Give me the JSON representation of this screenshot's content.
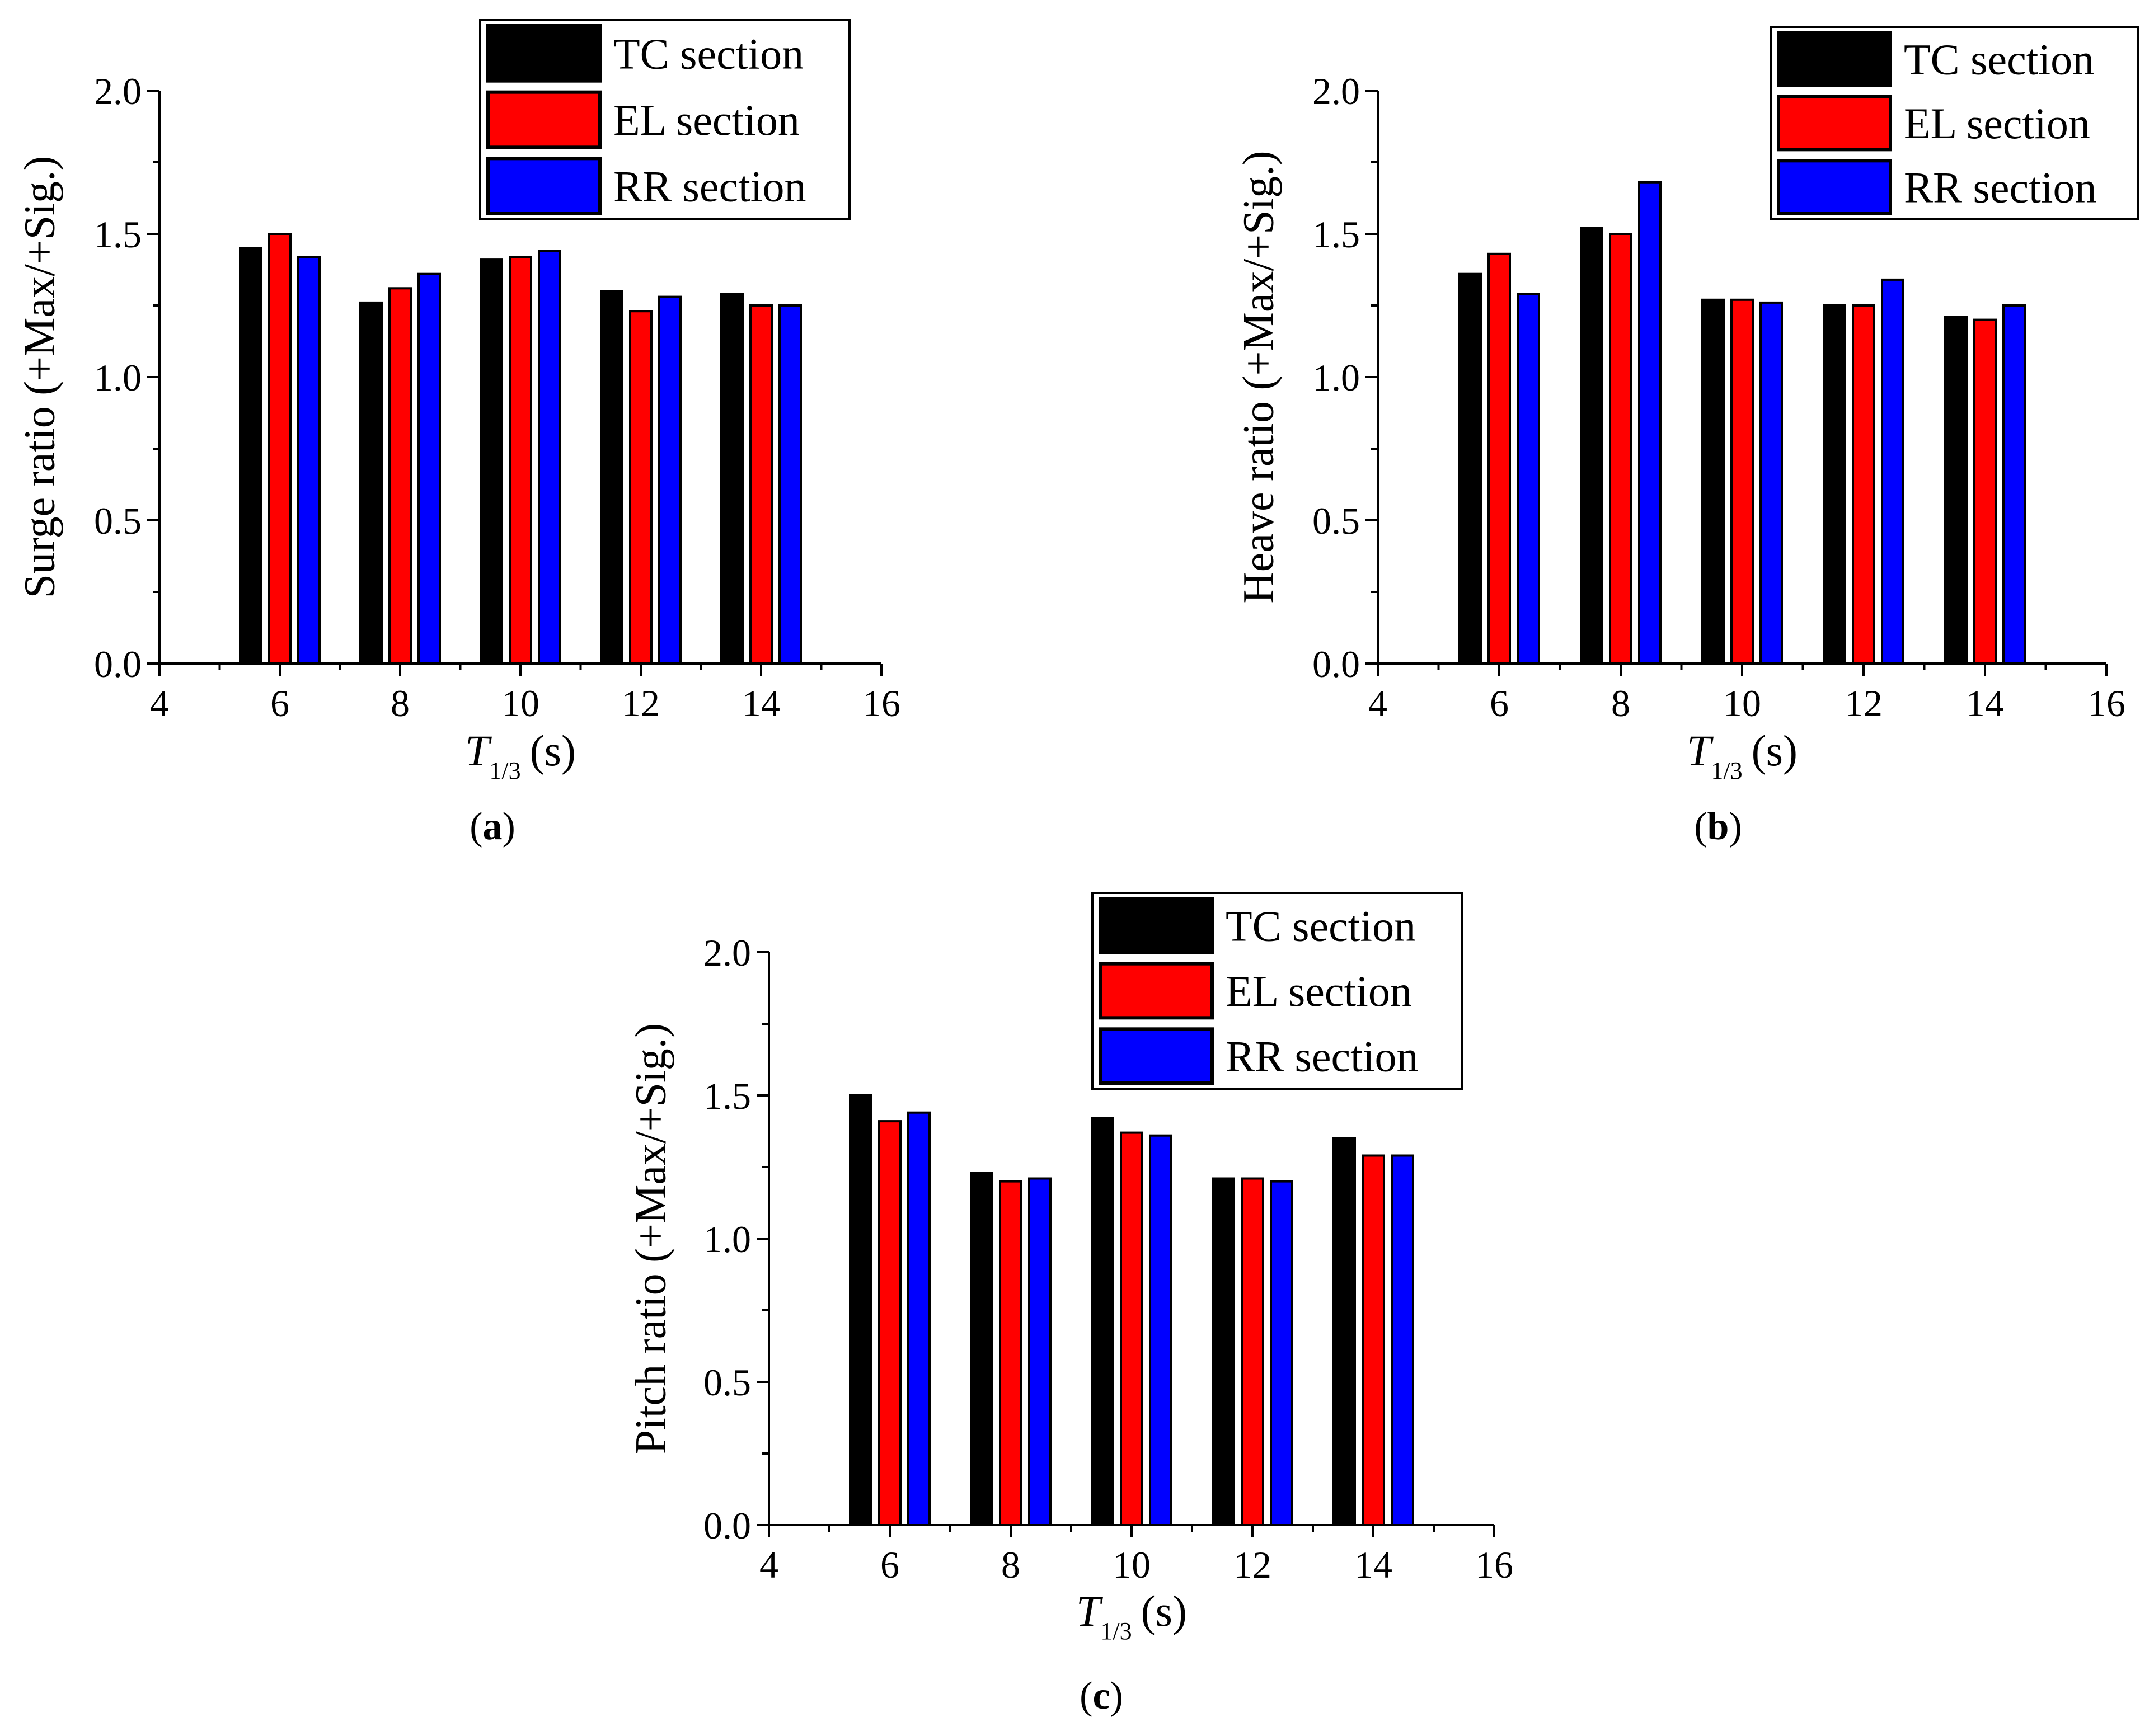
{
  "chart_data": [
    {
      "id": "a",
      "type": "bar",
      "panel_label": "a",
      "ylabel": "Surge ratio (+Max/+Sig.)",
      "xlabel": {
        "symbol": "T",
        "subscript": "1/3",
        "unit": "(s)"
      },
      "xlim": [
        4,
        16
      ],
      "xticks": [
        "4",
        "6",
        "8",
        "10",
        "12",
        "14",
        "16"
      ],
      "ylim": [
        0.0,
        2.0
      ],
      "yticks": [
        "0.0",
        "0.5",
        "1.0",
        "1.5",
        "2.0"
      ],
      "legend_position": "top-right",
      "categories": [
        6,
        8,
        10,
        12,
        14
      ],
      "series": [
        {
          "name": "TC section",
          "color": "#000000",
          "values": [
            1.45,
            1.26,
            1.41,
            1.3,
            1.29
          ]
        },
        {
          "name": "EL section",
          "color": "#ff0000",
          "values": [
            1.5,
            1.31,
            1.42,
            1.23,
            1.25
          ]
        },
        {
          "name": "RR section",
          "color": "#0000ff",
          "values": [
            1.42,
            1.36,
            1.44,
            1.28,
            1.25
          ]
        }
      ]
    },
    {
      "id": "b",
      "type": "bar",
      "panel_label": "b",
      "ylabel": "Heave ratio (+Max/+Sig.)",
      "xlabel": {
        "symbol": "T",
        "subscript": "1/3",
        "unit": "(s)"
      },
      "xlim": [
        4,
        16
      ],
      "xticks": [
        "4",
        "6",
        "8",
        "10",
        "12",
        "14",
        "16"
      ],
      "ylim": [
        0.0,
        2.0
      ],
      "yticks": [
        "0.0",
        "0.5",
        "1.0",
        "1.5",
        "2.0"
      ],
      "legend_position": "top-right",
      "categories": [
        6,
        8,
        10,
        12,
        14
      ],
      "series": [
        {
          "name": "TC section",
          "color": "#000000",
          "values": [
            1.36,
            1.52,
            1.27,
            1.25,
            1.21
          ]
        },
        {
          "name": "EL section",
          "color": "#ff0000",
          "values": [
            1.43,
            1.5,
            1.27,
            1.25,
            1.2
          ]
        },
        {
          "name": "RR section",
          "color": "#0000ff",
          "values": [
            1.29,
            1.68,
            1.26,
            1.34,
            1.25
          ]
        }
      ]
    },
    {
      "id": "c",
      "type": "bar",
      "panel_label": "c",
      "ylabel": "Pitch ratio (+Max/+Sig.)",
      "xlabel": {
        "symbol": "T",
        "subscript": "1/3",
        "unit": "(s)"
      },
      "xlim": [
        4,
        16
      ],
      "xticks": [
        "4",
        "6",
        "8",
        "10",
        "12",
        "14",
        "16"
      ],
      "ylim": [
        0.0,
        2.0
      ],
      "yticks": [
        "0.0",
        "0.5",
        "1.0",
        "1.5",
        "2.0"
      ],
      "legend_position": "top-right",
      "categories": [
        6,
        8,
        10,
        12,
        14
      ],
      "series": [
        {
          "name": "TC section",
          "color": "#000000",
          "values": [
            1.5,
            1.23,
            1.42,
            1.21,
            1.35
          ]
        },
        {
          "name": "EL section",
          "color": "#ff0000",
          "values": [
            1.41,
            1.2,
            1.37,
            1.21,
            1.29
          ]
        },
        {
          "name": "RR section",
          "color": "#0000ff",
          "values": [
            1.44,
            1.21,
            1.36,
            1.2,
            1.29
          ]
        }
      ]
    }
  ]
}
